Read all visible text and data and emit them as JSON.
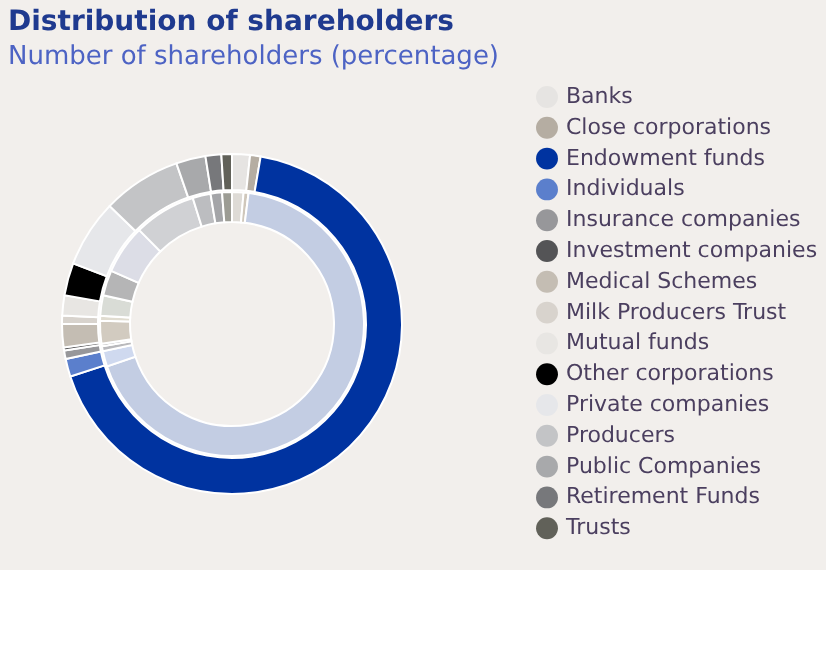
{
  "chart_data": {
    "type": "donut",
    "title": "Distribution of shareholders",
    "subtitle": "Number of shareholders (percentage)",
    "categories": [
      "Banks",
      "Close corporations",
      "Endowment funds",
      "Individuals",
      "Insurance companies",
      "Investment companies",
      "Medical Schemes",
      "Milk Producers Trust",
      "Mutual funds",
      "Other corporations",
      "Private companies",
      "Producers",
      "Public Companies",
      "Retirement Funds",
      "Trusts"
    ],
    "series": [
      {
        "values": [
          1.7,
          1.0,
          67.3,
          1.7,
          0.8,
          0.3,
          2.2,
          0.8,
          1.9,
          3.1,
          6.4,
          7.5,
          2.8,
          1.5,
          1.0
        ],
        "colors": [
          "#e6e4e2",
          "#b5ada2",
          "#0033a0",
          "#5b7fcc",
          "#97979a",
          "#545456",
          "#c4bdb3",
          "#d8d3cd",
          "#e8e6e3",
          "#000000",
          "#e6e7ea",
          "#c3c4c6",
          "#a8a9ab",
          "#77787b",
          "#616159"
        ]
      },
      {
        "values": [
          1.4,
          0.6,
          67.8,
          1.9,
          0.6,
          0.3,
          2.8,
          0.6,
          2.5,
          3.1,
          6.0,
          7.6,
          2.2,
          1.4,
          1.2
        ],
        "colors": [
          "#dedbd6",
          "#cfc7bb",
          "#c3cde3",
          "#cfd9ef",
          "#b9b9bc",
          "#8a8a8d",
          "#d2cbc0",
          "#e0dcd0",
          "#d9dcd6",
          "#b5b5b6",
          "#dcdde6",
          "#d0d1d4",
          "#bcbdc0",
          "#a4a5a8",
          "#9c9c94"
        ]
      }
    ],
    "legend": "right"
  }
}
